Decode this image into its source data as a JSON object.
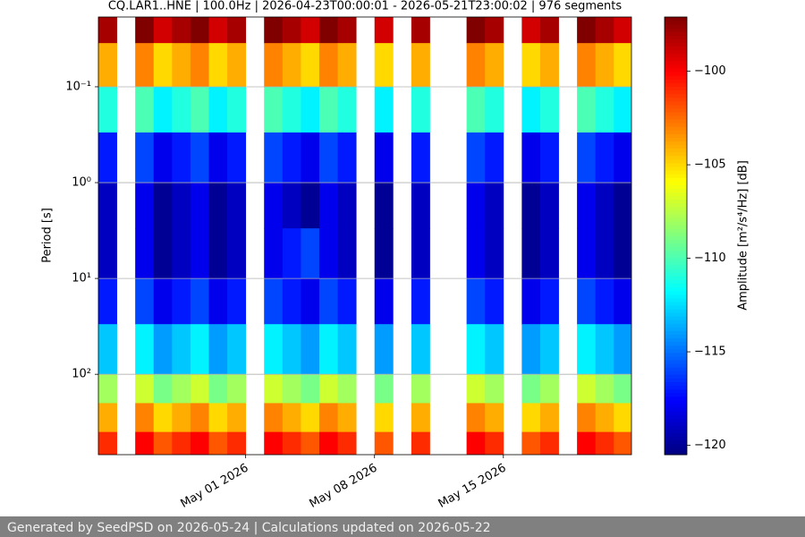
{
  "chart_data": {
    "type": "heatmap",
    "title": "CQ.LAR1..HNE | 100.0Hz | 2026-04-23T00:00:01 - 2026-05-21T23:00:02 | 976 segments",
    "y_label": "Period [s]",
    "colorbar_label": "Amplitude [m²/s⁴/Hz] [dB]",
    "colormap": "jet",
    "x": [
      "2026-04-23",
      "2026-04-24",
      "2026-04-25",
      "2026-04-26",
      "2026-04-27",
      "2026-04-28",
      "2026-04-29",
      "2026-04-30",
      "2026-05-01",
      "2026-05-02",
      "2026-05-03",
      "2026-05-04",
      "2026-05-05",
      "2026-05-06",
      "2026-05-07",
      "2026-05-08",
      "2026-05-09",
      "2026-05-10",
      "2026-05-11",
      "2026-05-12",
      "2026-05-13",
      "2026-05-14",
      "2026-05-15",
      "2026-05-16",
      "2026-05-17",
      "2026-05-18",
      "2026-05-19",
      "2026-05-20",
      "2026-05-21"
    ],
    "xlim": [
      "2026-04-23T00:00:01",
      "2026-05-21T23:00:02"
    ],
    "xticks": [
      {
        "value": "2026-05-01",
        "label": "May 01 2026"
      },
      {
        "value": "2026-05-08",
        "label": "May 08 2026"
      },
      {
        "value": "2026-05-15",
        "label": "May 15 2026"
      }
    ],
    "y_bins": [
      0.0187,
      0.035,
      0.1,
      0.3,
      1,
      3,
      10,
      30,
      100,
      200,
      400,
      690
    ],
    "ylim": [
      0.0187,
      690
    ],
    "log_y": true,
    "inverted_y": true,
    "yticks": [
      {
        "value": 0.1,
        "label": "10⁻¹"
      },
      {
        "value": 1,
        "label": "10⁰"
      },
      {
        "value": 10,
        "label": "10¹"
      },
      {
        "value": 100,
        "label": "10²"
      }
    ],
    "grid": true,
    "clim": [
      -120.5,
      -97.1
    ],
    "cticks": [
      {
        "value": -100,
        "label": "−100"
      },
      {
        "value": -105,
        "label": "−105"
      },
      {
        "value": -110,
        "label": "−110"
      },
      {
        "value": -115,
        "label": "−115"
      },
      {
        "value": -120,
        "label": "−120"
      }
    ],
    "values": [
      [
        -98,
        null,
        -97,
        -99,
        -98,
        -97,
        -99,
        -98,
        null,
        -97,
        -98,
        -99,
        -97,
        -98,
        null,
        -99,
        null,
        -98,
        null,
        null,
        -97,
        -98,
        null,
        -99,
        -98,
        null,
        -97,
        -98,
        -99
      ],
      [
        -104,
        null,
        -103,
        -105,
        -104,
        -103,
        -105,
        -104,
        null,
        -103,
        -104,
        -105,
        -103,
        -104,
        null,
        -105,
        null,
        -104,
        null,
        null,
        -103,
        -104,
        null,
        -105,
        -104,
        null,
        -103,
        -104,
        -105
      ],
      [
        -111,
        null,
        -110,
        -112,
        -111,
        -110,
        -112,
        -111,
        null,
        -110,
        -111,
        -112,
        -110,
        -111,
        null,
        -112,
        null,
        -111,
        null,
        null,
        -110,
        -111,
        null,
        -112,
        -111,
        null,
        -110,
        -111,
        -112
      ],
      [
        -117,
        null,
        -116,
        -118,
        -117,
        -116,
        -118,
        -117,
        null,
        -116,
        -117,
        -118,
        -116,
        -117,
        null,
        -118,
        null,
        -117,
        null,
        null,
        -116,
        -117,
        null,
        -118,
        -117,
        null,
        -116,
        -117,
        -118
      ],
      [
        -119,
        null,
        -118,
        -120,
        -119,
        -118,
        -120,
        -119,
        null,
        -118,
        -119,
        -120,
        -118,
        -119,
        null,
        -120,
        null,
        -119,
        null,
        null,
        -118,
        -119,
        null,
        -120,
        -119,
        null,
        -118,
        -119,
        -120
      ],
      [
        -119,
        null,
        -118,
        -120,
        -119,
        -118,
        -120,
        -119,
        null,
        -118,
        -117,
        -116,
        -118,
        -119,
        null,
        -120,
        null,
        -119,
        null,
        null,
        -118,
        -119,
        null,
        -120,
        -119,
        null,
        -118,
        -119,
        -120
      ],
      [
        -117,
        null,
        -116,
        -118,
        -117,
        -116,
        -118,
        -117,
        null,
        -116,
        -117,
        -118,
        -116,
        -117,
        null,
        -118,
        null,
        -117,
        null,
        null,
        -116,
        -117,
        null,
        -118,
        -117,
        null,
        -116,
        -117,
        -118
      ],
      [
        -113,
        null,
        -112,
        -114,
        -113,
        -112,
        -114,
        -113,
        null,
        -112,
        -113,
        -114,
        -112,
        -113,
        null,
        -114,
        null,
        -113,
        null,
        null,
        -112,
        -113,
        null,
        -114,
        -113,
        null,
        -112,
        -113,
        -114
      ],
      [
        -108,
        null,
        -107,
        -109,
        -108,
        -107,
        -109,
        -108,
        null,
        -107,
        -108,
        -109,
        -107,
        -108,
        null,
        -109,
        null,
        -108,
        null,
        null,
        -107,
        -108,
        null,
        -109,
        -108,
        null,
        -107,
        -108,
        -109
      ],
      [
        -104,
        null,
        -103,
        -105,
        -104,
        -103,
        -105,
        -104,
        null,
        -103,
        -104,
        -105,
        -103,
        -104,
        null,
        -105,
        null,
        -104,
        null,
        null,
        -103,
        -104,
        null,
        -105,
        -104,
        null,
        -103,
        -104,
        -105
      ],
      [
        -101,
        null,
        -100,
        -102,
        -101,
        -100,
        -102,
        -101,
        null,
        -100,
        -101,
        -102,
        -100,
        -101,
        null,
        -102,
        null,
        -101,
        null,
        null,
        -100,
        -101,
        null,
        -102,
        -101,
        null,
        -100,
        -101,
        -102
      ]
    ]
  },
  "footer": {
    "text": "Generated by SeedPSD on 2026-05-24 | Calculations updated on 2026-05-22"
  }
}
